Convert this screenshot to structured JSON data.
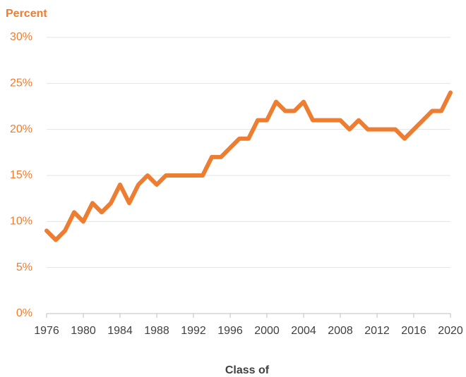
{
  "chart_data": {
    "type": "line",
    "y_label": "Percent",
    "x_label": "Class of",
    "x": [
      1976,
      1977,
      1978,
      1979,
      1980,
      1981,
      1982,
      1983,
      1984,
      1985,
      1986,
      1987,
      1988,
      1989,
      1990,
      1991,
      1992,
      1993,
      1994,
      1995,
      1996,
      1997,
      1998,
      1999,
      2000,
      2001,
      2002,
      2003,
      2004,
      2005,
      2006,
      2007,
      2008,
      2009,
      2010,
      2011,
      2012,
      2013,
      2014,
      2015,
      2016,
      2017,
      2018,
      2019,
      2020
    ],
    "values": [
      9,
      8,
      9,
      11,
      10,
      12,
      11,
      12,
      14,
      12,
      14,
      15,
      14,
      15,
      15,
      15,
      15,
      15,
      17,
      17,
      18,
      19,
      19,
      21,
      21,
      23,
      22,
      22,
      23,
      21,
      21,
      21,
      21,
      20,
      21,
      20,
      20,
      20,
      20,
      19,
      20,
      21,
      22,
      22,
      24
    ],
    "color": "#ed7d31",
    "xlim": [
      1976,
      2020
    ],
    "xticks": [
      1976,
      1980,
      1984,
      1988,
      1992,
      1996,
      2000,
      2004,
      2008,
      2012,
      2016,
      2020
    ],
    "ylim": [
      0,
      30
    ],
    "yticks": [
      {
        "value": 0,
        "label": "0%"
      },
      {
        "value": 5,
        "label": "5%"
      },
      {
        "value": 10,
        "label": "10%"
      },
      {
        "value": 15,
        "label": "15%"
      },
      {
        "value": 20,
        "label": "20%"
      },
      {
        "value": 25,
        "label": "25%"
      },
      {
        "value": 30,
        "label": "30%"
      }
    ],
    "grid": true
  }
}
